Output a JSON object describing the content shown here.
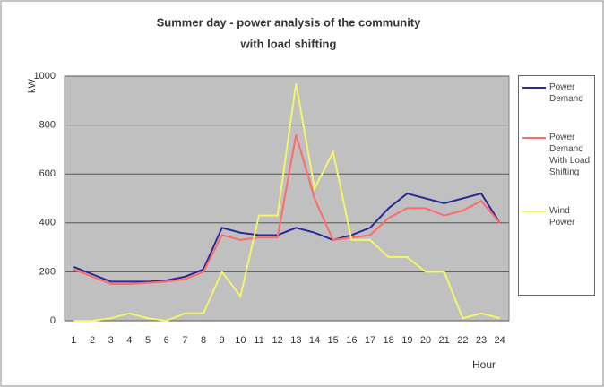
{
  "chart_data": {
    "type": "line",
    "title": [
      "Summer day - power analysis of the community",
      "with load shifting"
    ],
    "y_label": "kW",
    "x_label": "Hour",
    "x": [
      1,
      2,
      3,
      4,
      5,
      6,
      7,
      8,
      9,
      10,
      11,
      12,
      13,
      14,
      15,
      16,
      17,
      18,
      19,
      20,
      21,
      22,
      23,
      24
    ],
    "series": [
      {
        "name": "Power Demand",
        "color": "#2a2a9a",
        "values": [
          220,
          190,
          160,
          160,
          160,
          165,
          180,
          210,
          380,
          360,
          350,
          350,
          380,
          360,
          330,
          350,
          380,
          460,
          520,
          500,
          480,
          500,
          520,
          400
        ]
      },
      {
        "name": "Power Demand With Load Shifting",
        "color": "#ff6a6a",
        "values": [
          210,
          180,
          150,
          150,
          155,
          160,
          170,
          200,
          350,
          330,
          340,
          340,
          760,
          500,
          330,
          340,
          350,
          420,
          460,
          460,
          430,
          450,
          490,
          400
        ]
      },
      {
        "name": "Wind Power",
        "color": "#f4f46a",
        "values": [
          0,
          0,
          10,
          30,
          10,
          0,
          30,
          30,
          200,
          100,
          430,
          430,
          970,
          540,
          690,
          330,
          330,
          260,
          260,
          200,
          200,
          10,
          30,
          10
        ]
      }
    ],
    "ylim": [
      0,
      1000
    ],
    "yticks": [
      0,
      200,
      400,
      600,
      800,
      1000
    ],
    "grid": true,
    "legend": "right"
  }
}
